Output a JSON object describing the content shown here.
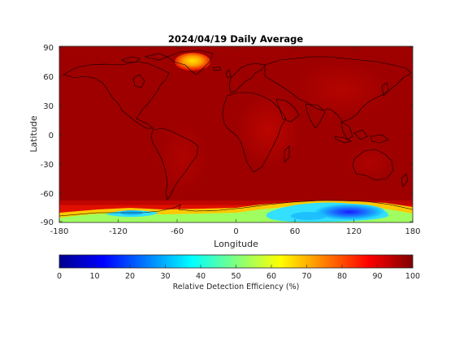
{
  "title": "2024/04/19 Daily Average",
  "map": {
    "xlabel": "Longitude",
    "ylabel": "Latitude",
    "x_ticks": [
      "-180",
      "-120",
      "-60",
      "0",
      "60",
      "120",
      "180"
    ],
    "y_ticks": [
      "90",
      "60",
      "30",
      "0",
      "-30",
      "-60",
      "-90"
    ]
  },
  "colorbar": {
    "label": "Relative Detection Efficiency (%)",
    "ticks": [
      "0",
      "10",
      "20",
      "30",
      "40",
      "50",
      "60",
      "70",
      "80",
      "90",
      "100"
    ],
    "colormap": "jet"
  }
}
